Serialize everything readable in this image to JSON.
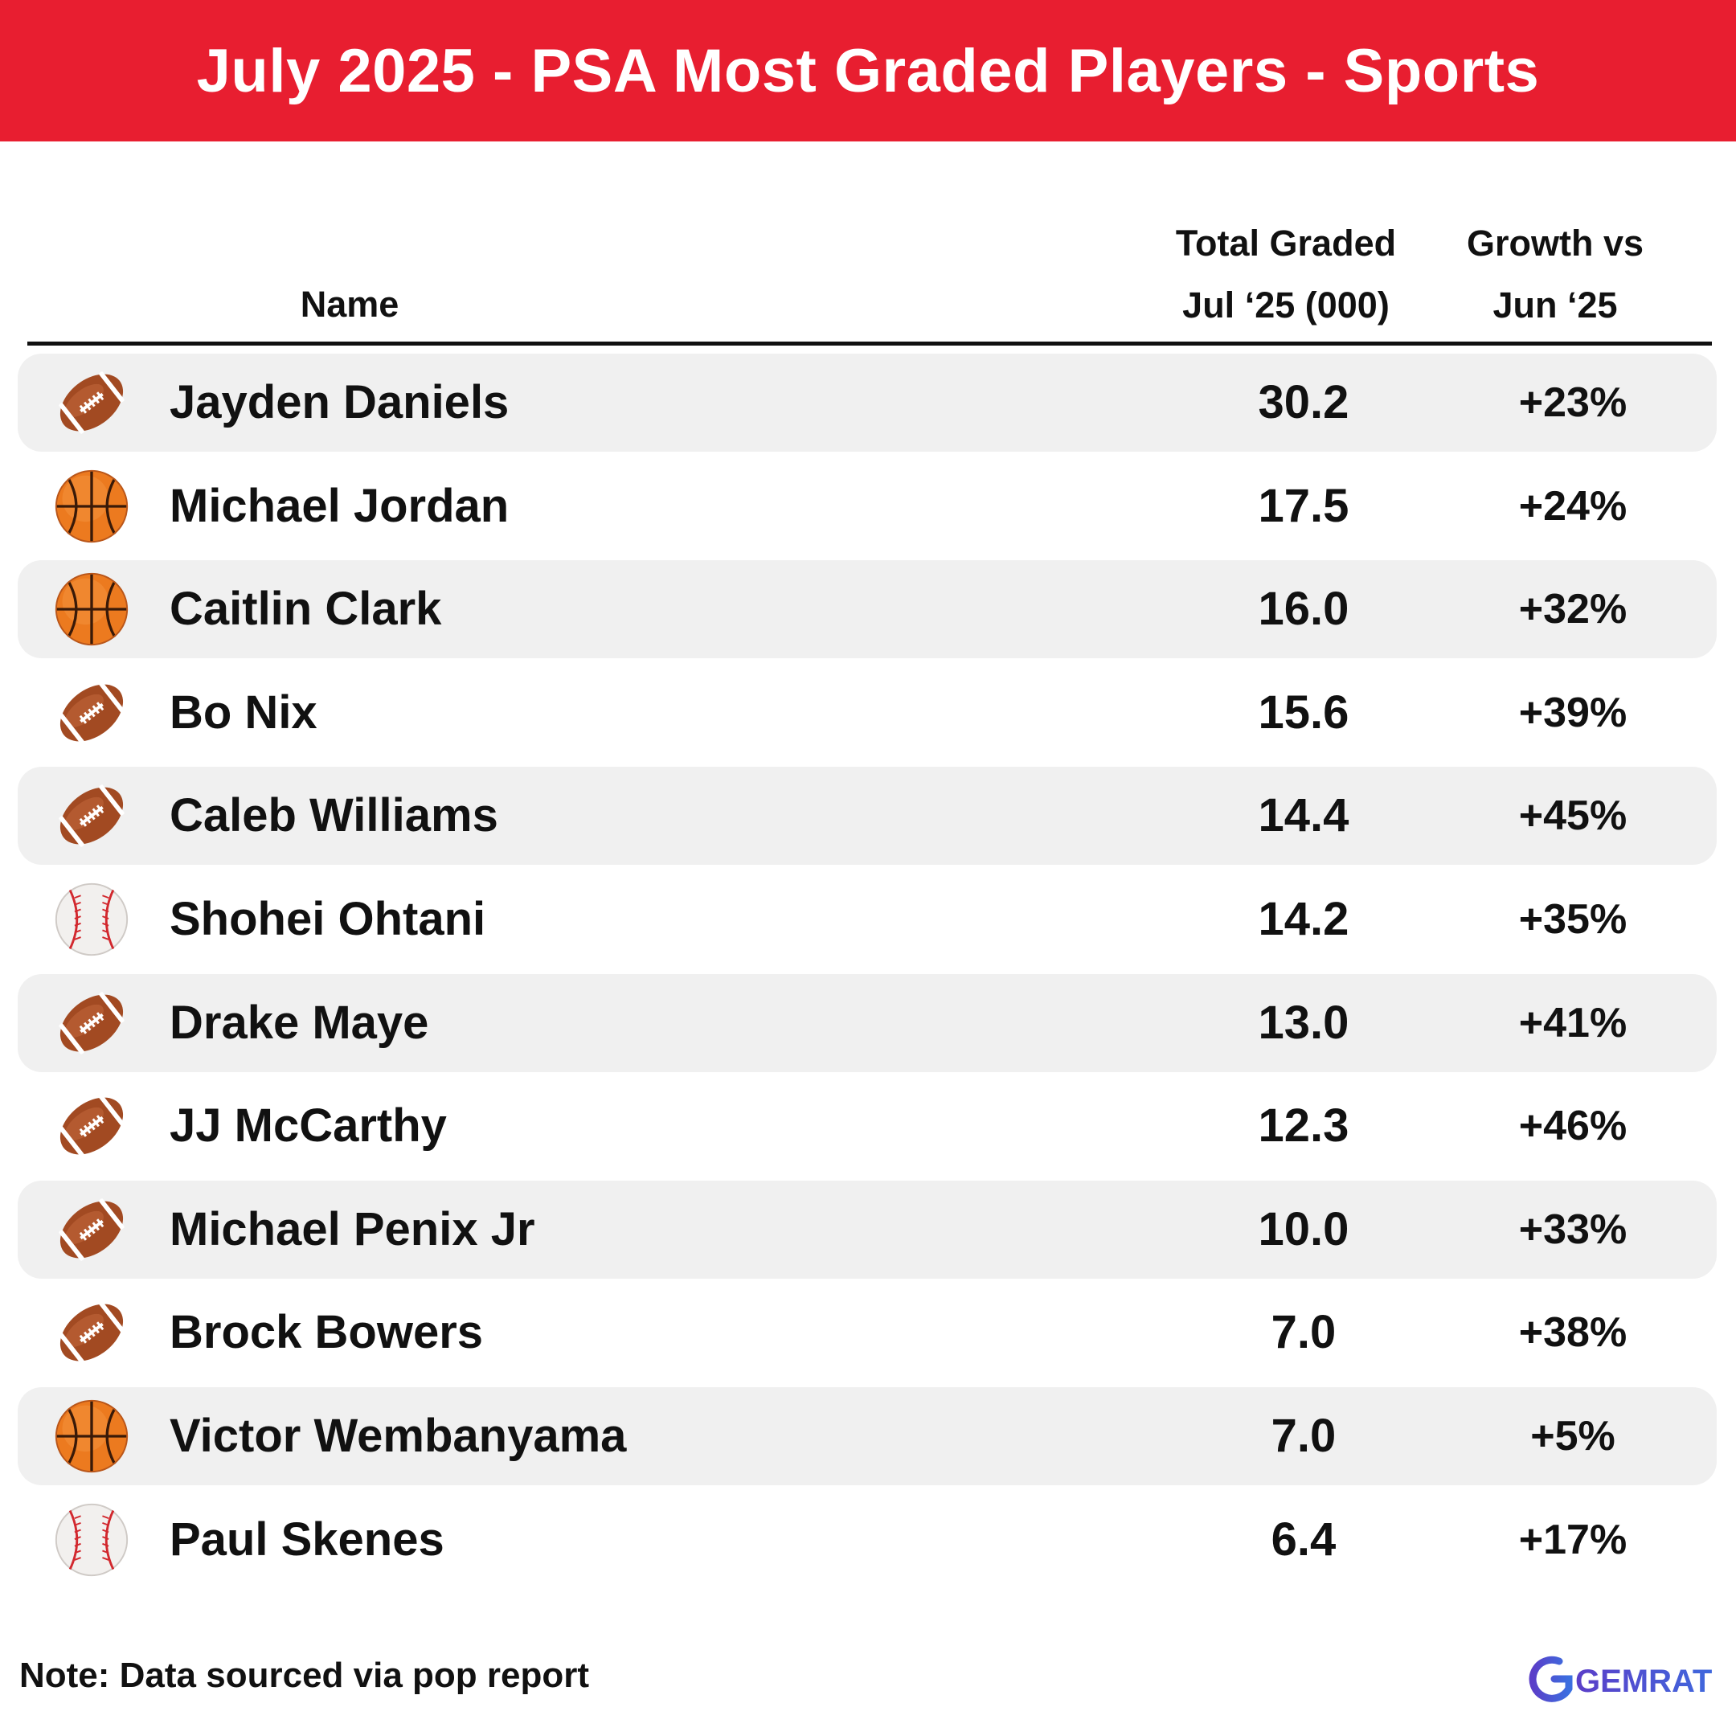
{
  "title": "July 2025 - PSA Most Graded Players - Sports",
  "columns": {
    "name": "Name",
    "total_line1": "Total Graded",
    "total_line2": "Jul ‘25 (000)",
    "growth_line1": "Growth vs",
    "growth_line2": "Jun ‘25"
  },
  "chart_data": {
    "type": "table",
    "columns": [
      "Name",
      "Total Graded Jul ‘25 (000)",
      "Growth vs Jun ‘25"
    ],
    "rows": [
      {
        "sport": "football-icon",
        "name": "Jayden Daniels",
        "total": "30.2",
        "growth": "+23%"
      },
      {
        "sport": "basketball-icon",
        "name": "Michael Jordan",
        "total": "17.5",
        "growth": "+24%"
      },
      {
        "sport": "basketball-icon",
        "name": "Caitlin Clark",
        "total": "16.0",
        "growth": "+32%"
      },
      {
        "sport": "football-icon",
        "name": "Bo Nix",
        "total": "15.6",
        "growth": "+39%"
      },
      {
        "sport": "football-icon",
        "name": "Caleb Williams",
        "total": "14.4",
        "growth": "+45%"
      },
      {
        "sport": "baseball-icon",
        "name": "Shohei Ohtani",
        "total": "14.2",
        "growth": "+35%"
      },
      {
        "sport": "football-icon",
        "name": "Drake Maye",
        "total": "13.0",
        "growth": "+41%"
      },
      {
        "sport": "football-icon",
        "name": "JJ McCarthy",
        "total": "12.3",
        "growth": "+46%"
      },
      {
        "sport": "football-icon",
        "name": "Michael Penix Jr",
        "total": "10.0",
        "growth": "+33%"
      },
      {
        "sport": "football-icon",
        "name": "Brock Bowers",
        "total": "7.0",
        "growth": "+38%"
      },
      {
        "sport": "basketball-icon",
        "name": "Victor Wembanyama",
        "total": "7.0",
        "growth": "+5%"
      },
      {
        "sport": "baseball-icon",
        "name": "Paul Skenes",
        "total": "6.4",
        "growth": "+17%"
      }
    ]
  },
  "note": "Note: Data sourced via pop report",
  "logo_text": "GEMRATE",
  "colors": {
    "banner": "#e81e30",
    "row_shade": "#f0f0f0",
    "logo_gradient_start": "#5b3ec8",
    "logo_gradient_end": "#3b6fe0"
  }
}
